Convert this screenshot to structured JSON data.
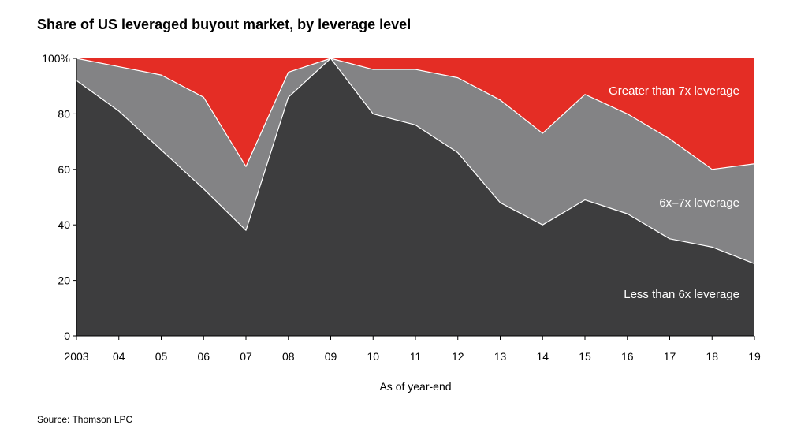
{
  "chart_data": {
    "type": "area",
    "stacked": true,
    "title": "Share of US leveraged buyout market, by leverage level",
    "xlabel": "As of year-end",
    "ylabel": "",
    "categories": [
      "2003",
      "04",
      "05",
      "06",
      "07",
      "08",
      "09",
      "10",
      "11",
      "12",
      "13",
      "14",
      "15",
      "16",
      "17",
      "18",
      "19"
    ],
    "ylim": [
      0,
      100
    ],
    "yticks": [
      0,
      20,
      40,
      60,
      80,
      100
    ],
    "ytick_labels": [
      "0",
      "20",
      "40",
      "60",
      "80",
      "100%"
    ],
    "series": [
      {
        "name": "Less than 6x leverage",
        "color": "#3d3d3e",
        "values": [
          92,
          81,
          67,
          53,
          38,
          86,
          100,
          80,
          76,
          66,
          48,
          40,
          49,
          44,
          35,
          32,
          26
        ]
      },
      {
        "name": "6x–7x leverage",
        "color": "#838385",
        "values": [
          8,
          16,
          27,
          33,
          23,
          9,
          0,
          16,
          20,
          27,
          37,
          33,
          38,
          36,
          36,
          28,
          36
        ]
      },
      {
        "name": "Greater than 7x leverage",
        "color": "#e42d25",
        "values": [
          0,
          3,
          6,
          14,
          39,
          5,
          0,
          4,
          4,
          7,
          15,
          27,
          13,
          20,
          29,
          40,
          38
        ]
      }
    ],
    "grid": false,
    "legend": "inline labels on areas"
  },
  "footer": {
    "source": "Source: Thomson LPC"
  }
}
